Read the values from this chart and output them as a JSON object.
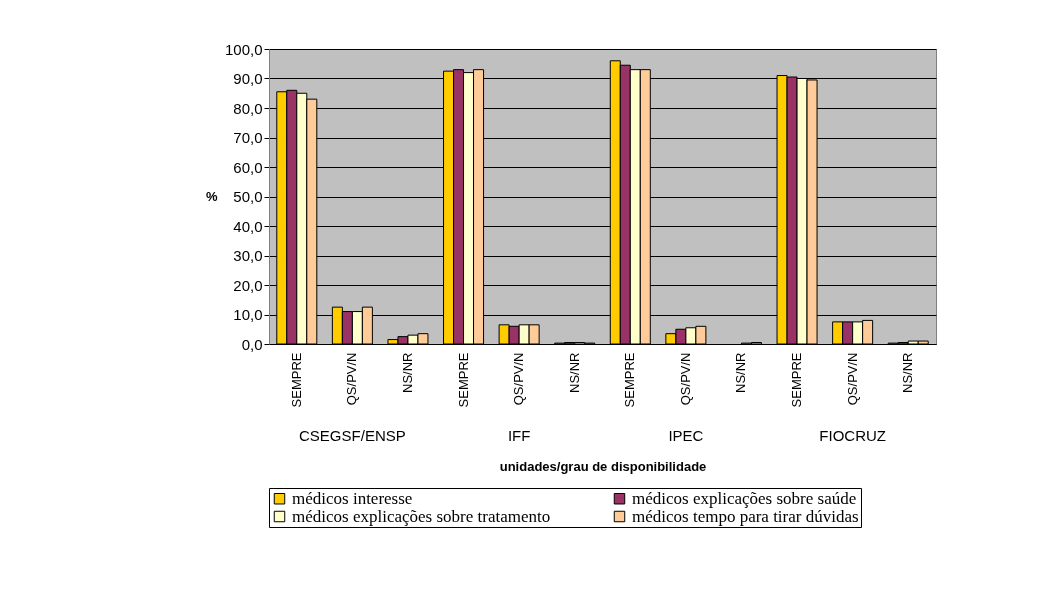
{
  "chart_data": {
    "type": "bar",
    "ylabel": "%",
    "xlabel": "unidades/grau de disponibilidade",
    "categories": [
      "SEMPRE",
      "QS/PV/N",
      "NS/NR",
      "SEMPRE",
      "QS/PV/N",
      "NS/NR",
      "SEMPRE",
      "QS/PV/N",
      "NS/NR",
      "SEMPRE",
      "QS/PV/N",
      "NS/NR"
    ],
    "annotations": [
      "CSEGSF/ENSP",
      "IFF",
      "IPEC",
      "FIOCRUZ"
    ],
    "series": [
      {
        "name": "médicos interesse",
        "color": "#ffcc00",
        "values": [
          85.5,
          12.5,
          1.5,
          92.5,
          6.5,
          0.3,
          96,
          3.5,
          0,
          91,
          7.5,
          0.3
        ]
      },
      {
        "name": "médicos explicações sobre saúde",
        "color": "#993366",
        "values": [
          86,
          11,
          2.5,
          93,
          6,
          0.5,
          94.5,
          5,
          0,
          90.5,
          7.5,
          0.5
        ]
      },
      {
        "name": "médicos explicações sobre tratamento",
        "color": "#ffffcc",
        "values": [
          85,
          11,
          3,
          92,
          6.5,
          0.5,
          93,
          5.5,
          0.3,
          90,
          7.5,
          1
        ]
      },
      {
        "name": "médicos tempo para tirar dúvidas",
        "color": "#ffcc99",
        "values": [
          83,
          12.5,
          3.5,
          93,
          6.5,
          0.3,
          93,
          6,
          0.5,
          89.5,
          8,
          1
        ]
      }
    ],
    "ylim": [
      0,
      100
    ],
    "yticks": [
      {
        "value": 0,
        "label": "0,0"
      },
      {
        "value": 10,
        "label": "10,0"
      },
      {
        "value": 20,
        "label": "20,0"
      },
      {
        "value": 30,
        "label": "30,0"
      },
      {
        "value": 40,
        "label": "40,0"
      },
      {
        "value": 50,
        "label": "50,0"
      },
      {
        "value": 60,
        "label": "60,0"
      },
      {
        "value": 70,
        "label": "70,0"
      },
      {
        "value": 80,
        "label": "80,0"
      },
      {
        "value": 90,
        "label": "90,0"
      },
      {
        "value": 100,
        "label": "100,0"
      }
    ],
    "grid": "y",
    "legend": "bottom"
  }
}
